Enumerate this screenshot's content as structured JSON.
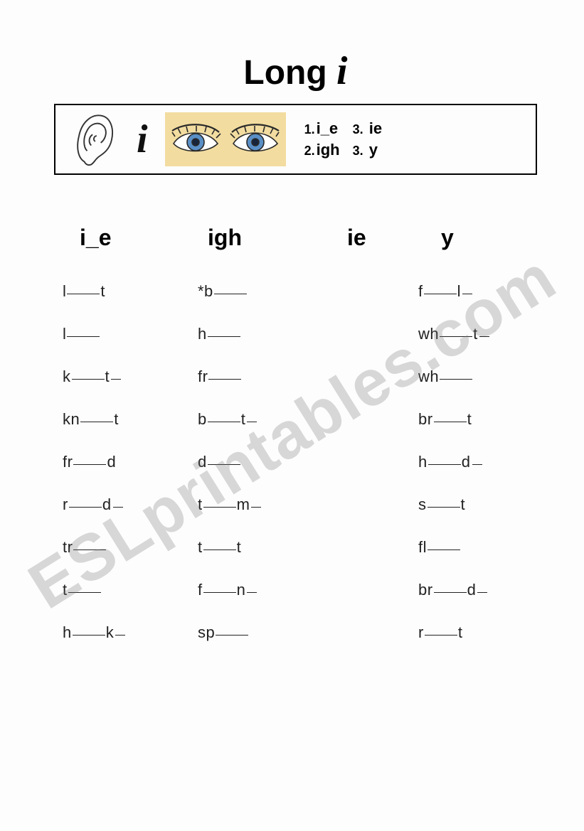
{
  "title": {
    "word1": "Long",
    "word2": "i"
  },
  "rulebox": {
    "sound_letter": "i",
    "patterns": {
      "p1": {
        "num": "1.",
        "txt": "i_e"
      },
      "p2": {
        "num": "2.",
        "txt": "igh"
      },
      "p3": {
        "num": "3.",
        "txt": "ie"
      },
      "p4": {
        "num": "3.",
        "txt": "y"
      }
    }
  },
  "columns": {
    "c1": {
      "head": "i_e"
    },
    "c2": {
      "head": "igh"
    },
    "c3": {
      "head": "ie"
    },
    "c4": {
      "head": "y"
    }
  },
  "words": {
    "col1": [
      {
        "pre": "l",
        "post": "t",
        "tail": false
      },
      {
        "pre": "l",
        "post": "",
        "tail": false
      },
      {
        "pre": "k",
        "post": "t",
        "tail": true
      },
      {
        "pre": "kn",
        "post": "t",
        "tail": false
      },
      {
        "pre": "fr",
        "post": "d",
        "tail": false
      },
      {
        "pre": "r",
        "post": "d",
        "tail": true
      },
      {
        "pre": "tr",
        "post": "",
        "tail": false
      },
      {
        "pre": "t",
        "post": "",
        "tail": false
      },
      {
        "pre": "h",
        "post": "k",
        "tail": true
      }
    ],
    "col2": [
      {
        "pre": "*b",
        "post": "",
        "tail": false
      },
      {
        "pre": "h",
        "post": "",
        "tail": false
      },
      {
        "pre": "fr",
        "post": "",
        "tail": false
      },
      {
        "pre": "b",
        "post": "t",
        "tail": true
      },
      {
        "pre": "d",
        "post": "",
        "tail": false
      },
      {
        "pre": "t",
        "post": "m",
        "tail": true
      },
      {
        "pre": "t",
        "post": "t",
        "tail": false
      },
      {
        "pre": "f",
        "post": "n",
        "tail": true
      },
      {
        "pre": "sp",
        "post": "",
        "tail": false
      }
    ],
    "col3": [
      {
        "pre": "f",
        "post": "l",
        "tail": true
      },
      {
        "pre": "wh",
        "post": "t",
        "tail": true
      },
      {
        "pre": "wh",
        "post": "",
        "tail": false
      },
      {
        "pre": "br",
        "post": "t",
        "tail": false
      },
      {
        "pre": "h",
        "post": "d",
        "tail": true
      },
      {
        "pre": "s",
        "post": "t",
        "tail": false
      },
      {
        "pre": "fl",
        "post": "",
        "tail": false
      },
      {
        "pre": "br",
        "post": "d",
        "tail": true
      },
      {
        "pre": "r",
        "post": "t",
        "tail": false
      }
    ]
  },
  "watermark": "ESLprintables.com",
  "style": {
    "eyes": {
      "skin": "#f2dca0",
      "white": "#ffffff",
      "iris": "#5a8fc6",
      "pupil": "#17243a",
      "line": "#2a2a2a"
    },
    "ear_line": "#333333"
  }
}
